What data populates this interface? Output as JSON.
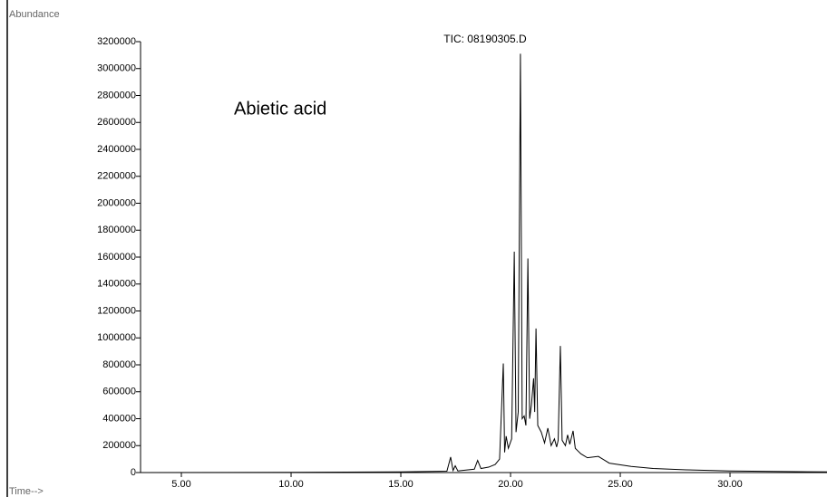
{
  "chart_data": {
    "type": "line",
    "title": "TIC: 08190305.D",
    "annotation": "Abietic acid",
    "y_label": "Abundance",
    "x_label": "Time-->",
    "color": "#000000",
    "x": [
      3.14,
      10,
      15,
      17.1,
      17.27,
      17.38,
      17.48,
      17.6,
      18.35,
      18.5,
      18.65,
      19.0,
      19.3,
      19.5,
      19.67,
      19.73,
      19.8,
      19.9,
      20.05,
      20.17,
      20.25,
      20.35,
      20.45,
      20.53,
      20.62,
      20.7,
      20.79,
      20.87,
      20.95,
      21.05,
      21.1,
      21.16,
      21.24,
      21.4,
      21.55,
      21.7,
      21.85,
      22.0,
      22.1,
      22.17,
      22.27,
      22.35,
      22.5,
      22.6,
      22.7,
      22.85,
      22.95,
      23.2,
      23.5,
      24.0,
      24.5,
      25.5,
      26.5,
      28.0,
      30.0,
      32.0,
      34.42
    ],
    "values": [
      0,
      2000,
      5000,
      10000,
      115000,
      15000,
      50000,
      12000,
      25000,
      90000,
      30000,
      40000,
      60000,
      100000,
      810000,
      150000,
      270000,
      180000,
      250000,
      1640000,
      300000,
      450000,
      3110000,
      400000,
      420000,
      350000,
      1590000,
      400000,
      500000,
      700000,
      450000,
      1070000,
      350000,
      300000,
      220000,
      330000,
      200000,
      250000,
      190000,
      240000,
      940000,
      240000,
      200000,
      280000,
      210000,
      310000,
      180000,
      140000,
      110000,
      120000,
      70000,
      45000,
      30000,
      20000,
      12000,
      8000,
      5000
    ],
    "xlim": [
      3.14,
      34.42
    ],
    "xticks": [
      {
        "value": 5,
        "label": "5.00"
      },
      {
        "value": 10,
        "label": "10.00"
      },
      {
        "value": 15,
        "label": "15.00"
      },
      {
        "value": 20,
        "label": "20.00"
      },
      {
        "value": 25,
        "label": "25.00"
      },
      {
        "value": 30,
        "label": "30.00"
      }
    ],
    "ylim": [
      0,
      3200000
    ],
    "yticks": [
      0,
      200000,
      400000,
      600000,
      800000,
      1000000,
      1200000,
      1400000,
      1600000,
      1800000,
      2000000,
      2200000,
      2400000,
      2600000,
      2800000,
      3000000,
      3200000
    ]
  }
}
